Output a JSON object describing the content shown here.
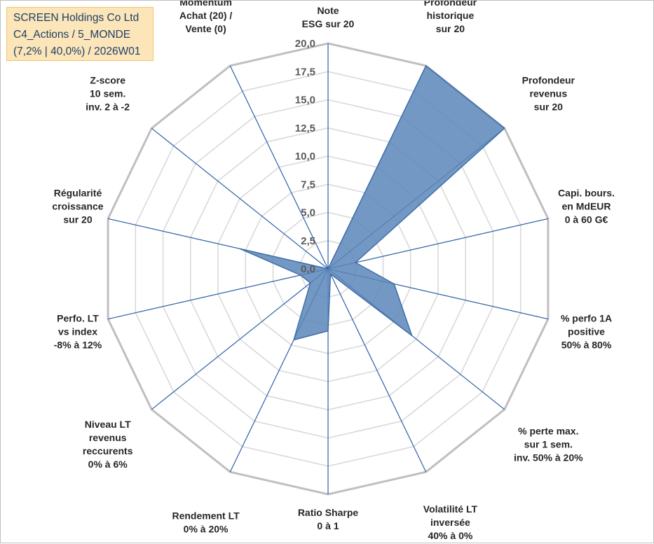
{
  "title_box": {
    "line1": "SCREEN Holdings Co Ltd",
    "line2": "C4_Actions / 5_MONDE",
    "line3": "(7,2% | 40,0%) / 2026W01"
  },
  "colors": {
    "fill": "#5b86b8",
    "stroke": "#3f6fa8",
    "spoke": "#2e5fa8",
    "grid_outer": "#bfbfbf",
    "grid_inner": "#d9d9d9",
    "title_bg": "#fbe5b9"
  },
  "chart_data": {
    "type": "radar",
    "rmin": 0,
    "rmax": 20,
    "grid": true,
    "tick_labels": [
      "0,0",
      "2,5",
      "5,0",
      "7,5",
      "10,0",
      "12,5",
      "15,0",
      "17,5",
      "20,0"
    ],
    "axes": [
      {
        "label": [
          "Note",
          "ESG sur 20"
        ],
        "value": 0
      },
      {
        "label": [
          "Profondeur",
          "historique",
          "sur 20"
        ],
        "value": 20
      },
      {
        "label": [
          "Profondeur",
          "revenus",
          "sur 20"
        ],
        "value": 20
      },
      {
        "label": [
          "Capi. bours.",
          "en MdEUR",
          "0 à 60 G€"
        ],
        "value": 2.5
      },
      {
        "label": [
          "% perfo 1A",
          "positive",
          "50% à 80%"
        ],
        "value": 6
      },
      {
        "label": [
          "% perte max.",
          "sur 1 sem.",
          "inv. 50% à 20%"
        ],
        "value": 9.5
      },
      {
        "label": [
          "Volatilité LT",
          "inversée",
          "40% à 0%"
        ],
        "value": 0.5
      },
      {
        "label": [
          "Ratio Sharpe",
          "0 à 1"
        ],
        "value": 5.5
      },
      {
        "label": [
          "Rendement LT",
          "0% à 20%"
        ],
        "value": 7
      },
      {
        "label": [
          "Niveau LT",
          "revenus",
          "reccurents",
          "0% à 6%"
        ],
        "value": 2
      },
      {
        "label": [
          "Perfo. LT",
          "vs index",
          "-8% à 12%"
        ],
        "value": 2.5
      },
      {
        "label": [
          "Régularité",
          "croissance",
          "sur 20"
        ],
        "value": 8
      },
      {
        "label": [
          "Z-score",
          "10 sem.",
          "inv. 2 à -2"
        ],
        "value": 0
      },
      {
        "label": [
          "Momentum",
          "Achat (20) /",
          "Vente (0)"
        ],
        "value": 0
      }
    ]
  }
}
